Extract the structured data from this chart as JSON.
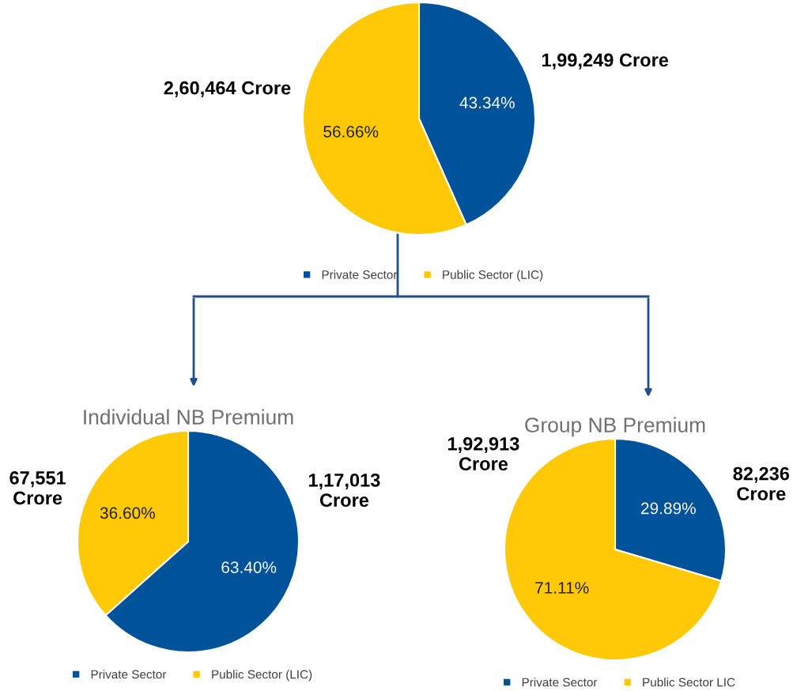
{
  "chart_data": [
    {
      "type": "pie",
      "categories": [
        "Private Sector",
        "Public Sector (LIC)"
      ],
      "values": [
        43.34,
        56.66
      ],
      "colors": [
        "#00529b",
        "#ffc907"
      ],
      "value_labels": [
        "43.34%",
        "56.66%"
      ],
      "annotations": [
        "1,99,249 Crore",
        "2,60,464 Crore"
      ],
      "legend": "bottom"
    },
    {
      "type": "pie",
      "title": "Individual NB Premium",
      "categories": [
        "Private Sector",
        "Public Sector (LIC)"
      ],
      "values": [
        63.4,
        36.6
      ],
      "colors": [
        "#00529b",
        "#ffc907"
      ],
      "value_labels": [
        "63.40%",
        "36.60%"
      ],
      "annotations": [
        "1,17,013\nCrore",
        "67,551\nCrore"
      ],
      "legend": "bottom"
    },
    {
      "type": "pie",
      "title": "Group NB Premium",
      "categories": [
        "Private Sector",
        "Public Sector LIC"
      ],
      "values": [
        29.89,
        71.11
      ],
      "colors": [
        "#00529b",
        "#ffc907"
      ],
      "value_labels": [
        "29.89%",
        "71.11%"
      ],
      "annotations": [
        "82,236\nCrore",
        "1,92,913\nCrore"
      ],
      "legend": "bottom"
    }
  ]
}
